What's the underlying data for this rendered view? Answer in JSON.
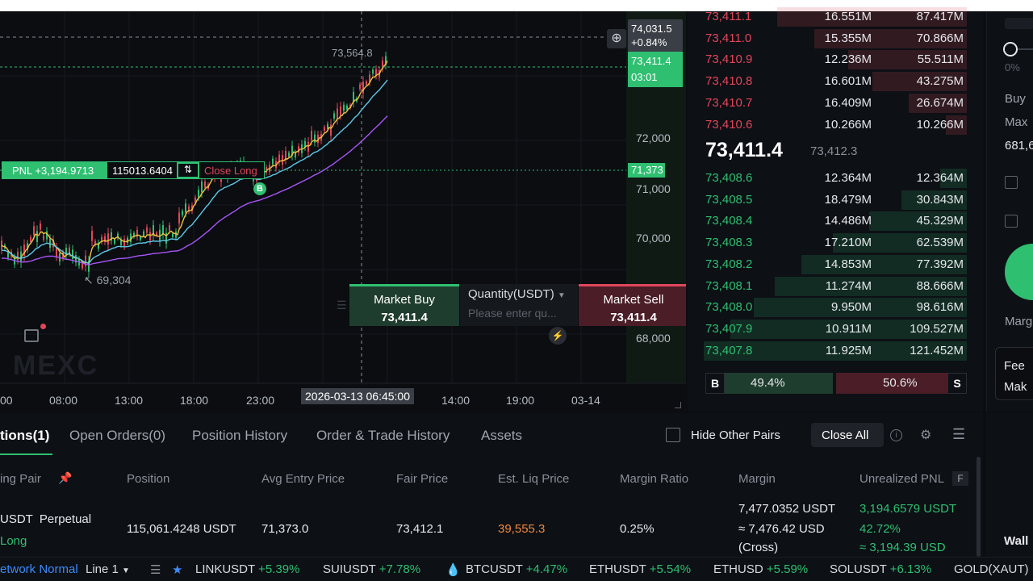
{
  "chart": {
    "crosshair_price": "74,031.5",
    "crosshair_change": "+0.84%",
    "last_price_tag": "73,411.4",
    "countdown": "03:01",
    "entry_tag": "71,373",
    "high_label": "73,564.8",
    "low_label": "69,304",
    "y_ticks": [
      {
        "label": "72,000"
      },
      {
        "label": "71,000"
      },
      {
        "label": "70,000"
      },
      {
        "label": "68,000"
      }
    ],
    "x_ticks": [
      "00",
      "08:00",
      "13:00",
      "18:00",
      "23:00",
      "14:00",
      "19:00",
      "03-14"
    ],
    "crosshair_time": "2026-03-13 06:45:00",
    "watermark": "MEXC",
    "pnl_label": "PNL +3,194.9713",
    "position_size": "115013.6404",
    "close_long": "Close Long",
    "buy_marker": "B"
  },
  "quick_trade": {
    "buy_label": "Market Buy",
    "buy_price": "73,411.4",
    "qty_label": "Quantity(USDT)",
    "qty_placeholder": "Please enter qu...",
    "sell_label": "Market Sell",
    "sell_price": "73,411.4"
  },
  "orderbook": {
    "asks": [
      {
        "price": "73,411.1",
        "size": "16.551M",
        "total": "87.417M",
        "depth": 0.72
      },
      {
        "price": "73,411.0",
        "size": "15.355M",
        "total": "70.866M",
        "depth": 0.58
      },
      {
        "price": "73,410.9",
        "size": "12.236M",
        "total": "55.511M",
        "depth": 0.45
      },
      {
        "price": "73,410.8",
        "size": "16.601M",
        "total": "43.275M",
        "depth": 0.36
      },
      {
        "price": "73,410.7",
        "size": "16.409M",
        "total": "26.674M",
        "depth": 0.22
      },
      {
        "price": "73,410.6",
        "size": "10.266M",
        "total": "10.266M",
        "depth": 0.08
      }
    ],
    "mid_price": "73,411.4",
    "mark_price": "73,412.3",
    "bids": [
      {
        "price": "73,408.6",
        "size": "12.364M",
        "total": "12.364M",
        "depth": 0.1
      },
      {
        "price": "73,408.5",
        "size": "18.479M",
        "total": "30.843M",
        "depth": 0.25
      },
      {
        "price": "73,408.4",
        "size": "14.486M",
        "total": "45.329M",
        "depth": 0.37
      },
      {
        "price": "73,408.3",
        "size": "17.210M",
        "total": "62.539M",
        "depth": 0.51
      },
      {
        "price": "73,408.2",
        "size": "14.853M",
        "total": "77.392M",
        "depth": 0.63
      },
      {
        "price": "73,408.1",
        "size": "11.274M",
        "total": "88.666M",
        "depth": 0.73
      },
      {
        "price": "73,408.0",
        "size": "9.950M",
        "total": "98.616M",
        "depth": 0.81
      },
      {
        "price": "73,407.9",
        "size": "10.911M",
        "total": "109.527M",
        "depth": 0.9
      },
      {
        "price": "73,407.8",
        "size": "11.925M",
        "total": "121.452M",
        "depth": 1.0
      }
    ],
    "buy_tag": "B",
    "buy_ratio": "49.4%",
    "sell_ratio": "50.6%",
    "sell_tag": "S",
    "buy_ratio_value": 0.494
  },
  "right_panel": {
    "slider_pct": "0%",
    "buy_label": "Buy",
    "max_label": "Max",
    "value": "681,6",
    "marg_label": "Marg",
    "fee_label": "Fee",
    "mak_label": "Mak",
    "wall_label": "Wall"
  },
  "positions": {
    "tabs": [
      "tions(1)",
      "Open Orders(0)",
      "Position History",
      "Order & Trade History",
      "Assets"
    ],
    "hide_other_pairs": "Hide Other Pairs",
    "close_all": "Close All",
    "headers": [
      "ing Pair",
      "Position",
      "Avg Entry Price",
      "Fair Price",
      "Est. Liq Price",
      "Margin Ratio",
      "Margin",
      "Unrealized PNL"
    ],
    "pnl_badge": "F",
    "row": {
      "pair": "USDT  Perpetual",
      "side": "Long",
      "position": "115,061.4248 USDT",
      "avg_entry": "71,373.0",
      "fair_price": "73,412.1",
      "liq_price": "39,555.3",
      "margin_ratio": "0.25%",
      "margin": "7,477.0352 USDT",
      "margin_usd": "≈ 7,476.42 USD",
      "margin_mode": "(Cross)",
      "pnl": "3,194.6579 USDT",
      "pnl_pct": "42.72%",
      "pnl_usd": "≈ 3,194.39 USD"
    }
  },
  "ticker": {
    "network": "etwork Normal",
    "line": "Line 1",
    "items": [
      {
        "symbol": "LINKUSDT",
        "change": "+5.39%"
      },
      {
        "symbol": "SUIUSDT",
        "change": "+7.78%"
      },
      {
        "symbol": "BTCUSDT",
        "change": "+4.47%"
      },
      {
        "symbol": "ETHUSDT",
        "change": "+5.54%"
      },
      {
        "symbol": "ETHUSD",
        "change": "+5.59%"
      },
      {
        "symbol": "SOLUSDT",
        "change": "+6.13%"
      },
      {
        "symbol": "GOLD(XAUT)",
        "change": ""
      }
    ]
  },
  "colors": {
    "green": "#2fbf71",
    "red": "#e0465a",
    "orange": "#f0883e"
  }
}
